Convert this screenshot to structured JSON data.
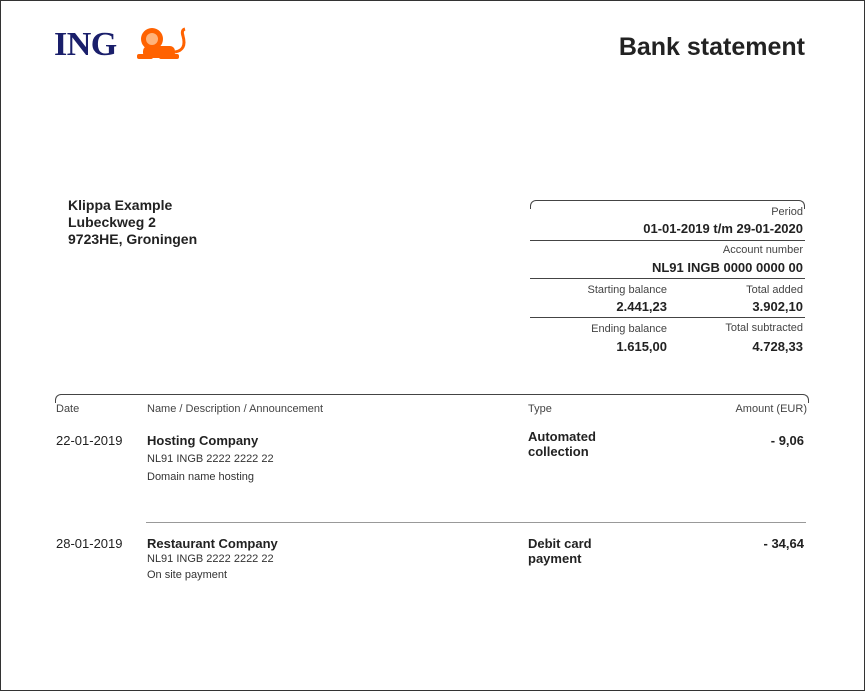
{
  "header": {
    "logo_text": "ING",
    "title": "Bank statement",
    "brand_colors": {
      "navy": "#1a1f6b",
      "orange": "#ff6200"
    },
    "logo_icon": "lion-icon"
  },
  "address": {
    "name": "Klippa Example",
    "street": "Lubeckweg 2",
    "city": "9723HE, Groningen"
  },
  "summary": {
    "period_label": "Period",
    "period_value": "01-01-2019 t/m 29-01-2020",
    "account_label": "Account number",
    "account_value": "NL91 INGB 0000 0000 00",
    "starting_label": "Starting balance",
    "starting_value": "2.441,23",
    "added_label": "Total added",
    "added_value": "3.902,10",
    "ending_label": "Ending balance",
    "ending_value": "1.615,00",
    "subtracted_label": "Total subtracted",
    "subtracted_value": "4.728,33"
  },
  "table": {
    "headers": {
      "date": "Date",
      "name": "Name / Description / Announcement",
      "type": "Type",
      "amount": "Amount (EUR)"
    },
    "rows": [
      {
        "date": "22-01-2019",
        "name": "Hosting Company",
        "iban": "NL91 INGB 2222 2222 22",
        "description": "Domain name hosting",
        "type_line1": "Automated",
        "type_line2": "collection",
        "amount": "- 9,06"
      },
      {
        "date": "28-01-2019",
        "name": "Restaurant Company",
        "iban": "NL91 INGB 2222 2222 22",
        "description": "On site payment",
        "type_line1": "Debit card",
        "type_line2": "payment",
        "amount": "- 34,64"
      }
    ]
  }
}
